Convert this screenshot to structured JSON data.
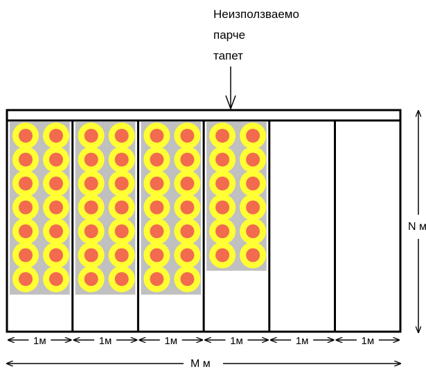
{
  "callout": {
    "line1": "Неизползваемо",
    "line2": "парче",
    "line3": "тапет"
  },
  "height_label": "N м",
  "total_width_label": "M м",
  "strip_widths": [
    "1м",
    "1м",
    "1м",
    "1м",
    "1м",
    "1м"
  ],
  "pattern": {
    "rows_full": 7,
    "rows_partial": 6,
    "cols_per_strip": 2,
    "ring_color": "#ffff33",
    "dot_color": "#f26b4f",
    "paper_color": "#c0c0c0"
  },
  "strips": [
    {
      "type": "full"
    },
    {
      "type": "full"
    },
    {
      "type": "full"
    },
    {
      "type": "partial"
    },
    {
      "type": "empty"
    },
    {
      "type": "empty"
    }
  ]
}
